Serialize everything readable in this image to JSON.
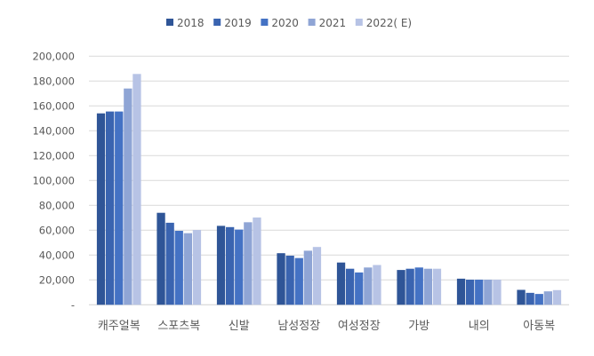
{
  "chart_data": {
    "type": "bar",
    "title": "",
    "xlabel": "",
    "ylabel": "",
    "ylim": [
      0,
      200000
    ],
    "ytick_step": 20000,
    "ytick_labels": [
      "-",
      "20,000",
      "40,000",
      "60,000",
      "80,000",
      "100,000",
      "120,000",
      "140,000",
      "160,000",
      "180,000",
      "200,000"
    ],
    "grid": true,
    "legend_position": "top",
    "categories": [
      "캐주얼복",
      "스포츠복",
      "신발",
      "남성정장",
      "여성정장",
      "가방",
      "내의",
      "아동복"
    ],
    "series": [
      {
        "name": "2018",
        "color": "#2f5597",
        "values": [
          154000,
          74000,
          63500,
          41500,
          34000,
          28000,
          21000,
          12000
        ]
      },
      {
        "name": "2019",
        "color": "#3a64b0",
        "values": [
          155500,
          66000,
          62500,
          39500,
          29000,
          29000,
          20200,
          9600
        ]
      },
      {
        "name": "2020",
        "color": "#4472c4",
        "values": [
          155500,
          59500,
          60500,
          37600,
          26000,
          30000,
          20200,
          8700
        ]
      },
      {
        "name": "2021",
        "color": "#8fa5d5",
        "values": [
          174000,
          57600,
          66400,
          43500,
          30000,
          29000,
          20200,
          10800
        ]
      },
      {
        "name": "2022( E)",
        "color": "#b7c3e5",
        "values": [
          185700,
          60200,
          70200,
          46500,
          32000,
          29000,
          20200,
          11800
        ]
      }
    ]
  }
}
